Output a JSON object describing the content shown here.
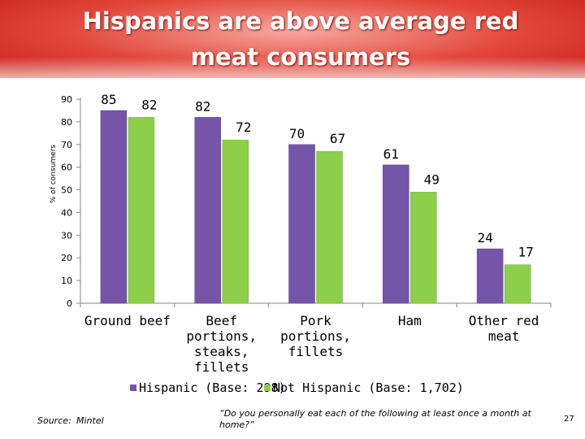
{
  "slide": {
    "title": "Hispanics are above average red meat consumers",
    "source_label": "Source:",
    "source_value": "Mintel",
    "question": "“Do you personally eat each of the following at least once a month at home?”",
    "page_number": "27"
  },
  "colors": {
    "hispanic": "#7455a8",
    "not_hispanic": "#8dce4a",
    "header": "#d9342b"
  },
  "chart_data": {
    "type": "bar",
    "title": "",
    "xlabel": "",
    "ylabel": "% of consumers",
    "ylim": [
      0,
      90
    ],
    "yticks": [
      0,
      10,
      20,
      30,
      40,
      50,
      60,
      70,
      80,
      90
    ],
    "grid": false,
    "legend_position": "bottom",
    "categories": [
      [
        "Ground beef"
      ],
      [
        "Beef",
        "portions,",
        "steaks,",
        "fillets"
      ],
      [
        "Pork",
        "portions,",
        "fillets"
      ],
      [
        "Ham"
      ],
      [
        "Other red",
        "meat"
      ]
    ],
    "series": [
      {
        "name": "Hispanic (Base: 298)",
        "values": [
          85,
          82,
          70,
          61,
          24
        ]
      },
      {
        "name": "Not Hispanic (Base: 1,702)",
        "values": [
          82,
          72,
          67,
          49,
          17
        ]
      }
    ]
  }
}
